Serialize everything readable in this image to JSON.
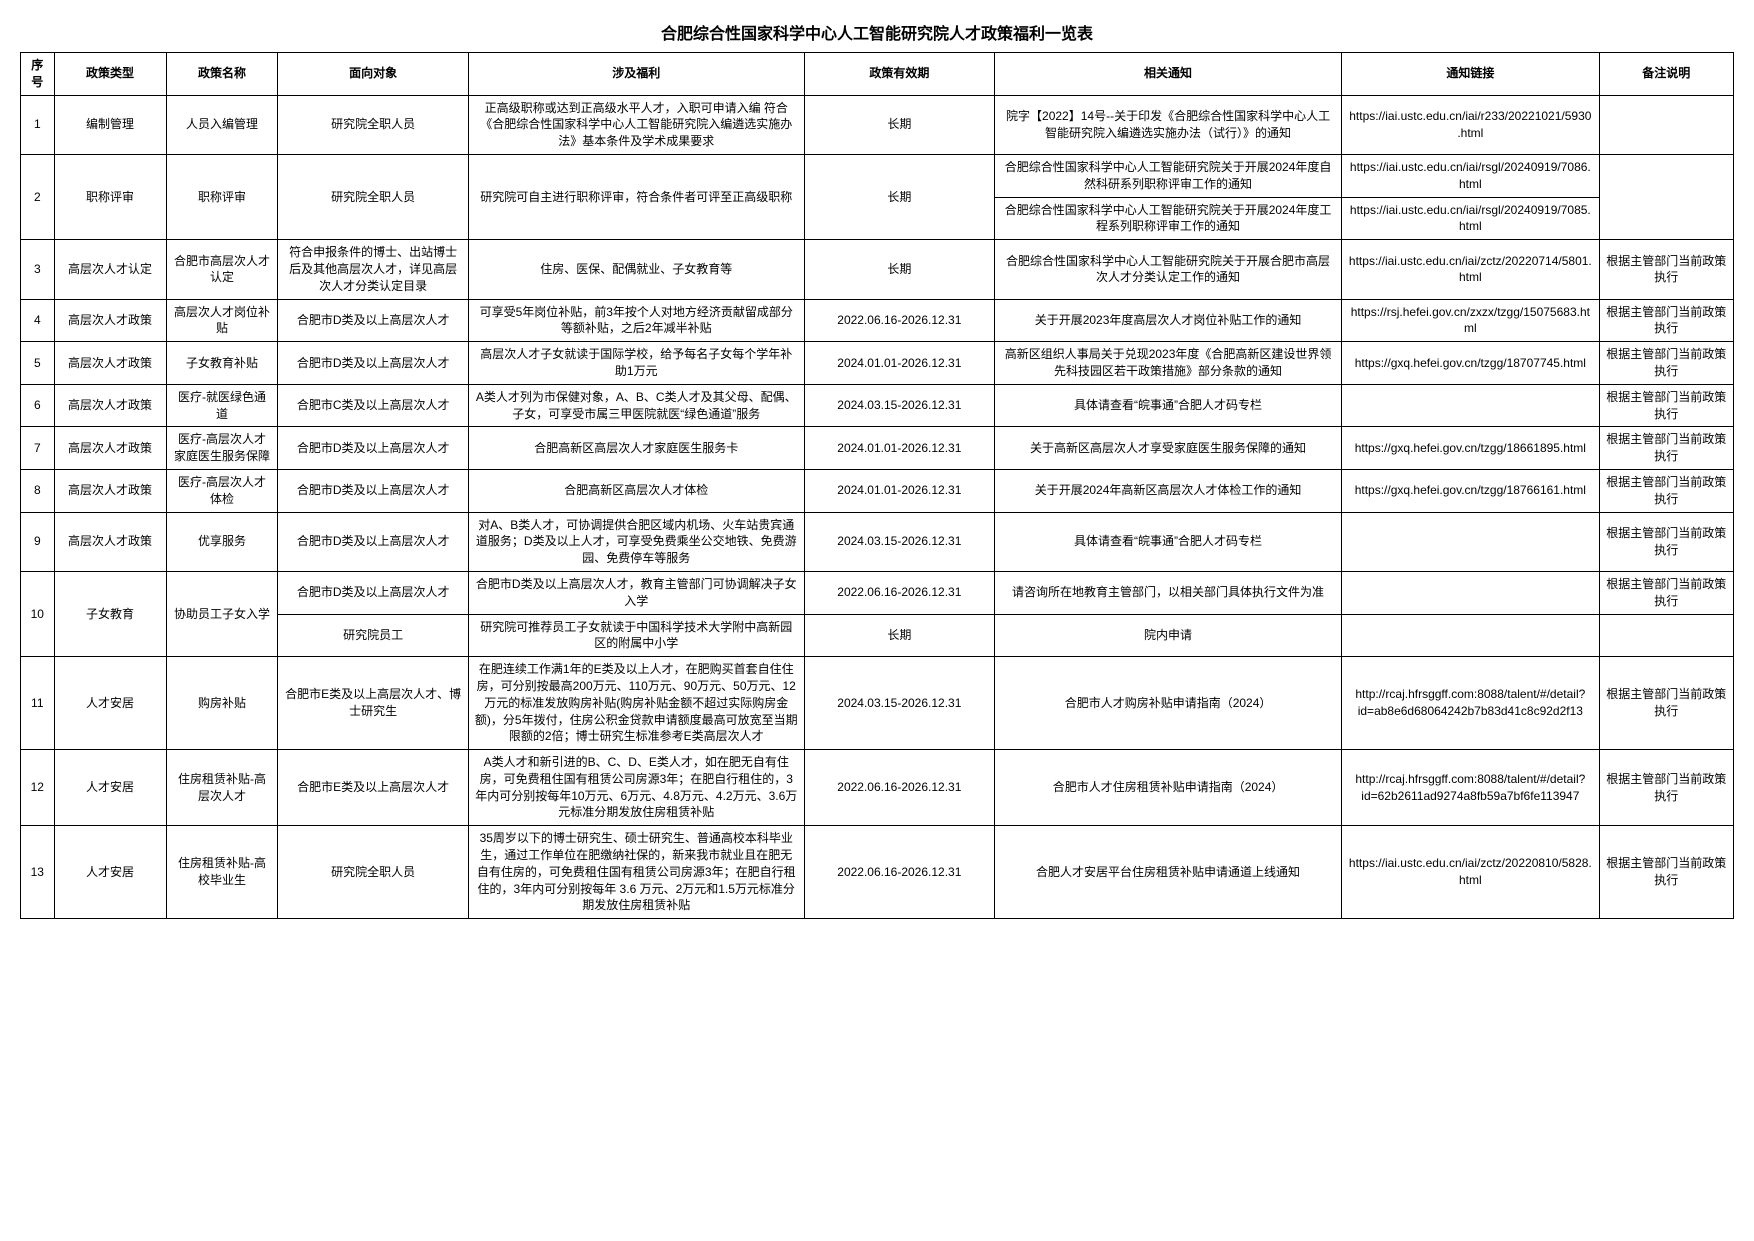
{
  "page_title": "合肥综合性国家科学中心人工智能研究院人才政策福利一览表",
  "columns": {
    "seq": "序号",
    "type": "政策类型",
    "name": "政策名称",
    "target": "面向对象",
    "benefit": "涉及福利",
    "valid": "政策有效期",
    "notice": "相关通知",
    "link": "通知链接",
    "remark": "备注说明"
  },
  "r1": {
    "seq": "1",
    "type": "编制管理",
    "name": "人员入编管理",
    "target": "研究院全职人员",
    "benefit": "正高级职称或达到正高级水平人才，入职可申请入编 符合《合肥综合性国家科学中心人工智能研究院入编遴选实施办法》基本条件及学术成果要求",
    "valid": "长期",
    "notice": "院字【2022】14号--关于印发《合肥综合性国家科学中心人工智能研究院入编遴选实施办法（试行）》的通知",
    "link": "https://iai.ustc.edu.cn/iai/r233/20221021/5930.html",
    "remark": ""
  },
  "r2": {
    "seq": "2",
    "type": "职称评审",
    "name": "职称评审",
    "target": "研究院全职人员",
    "benefit": "研究院可自主进行职称评审，符合条件者可评至正高级职称",
    "valid": "长期",
    "notice_a": "合肥综合性国家科学中心人工智能研究院关于开展2024年度自然科研系列职称评审工作的通知",
    "link_a": "https://iai.ustc.edu.cn/iai/rsgl/20240919/7086.html",
    "notice_b": "合肥综合性国家科学中心人工智能研究院关于开展2024年度工程系列职称评审工作的通知",
    "link_b": "https://iai.ustc.edu.cn/iai/rsgl/20240919/7085.html",
    "remark": ""
  },
  "r3": {
    "seq": "3",
    "type": "高层次人才认定",
    "name": "合肥市高层次人才认定",
    "target": "符合申报条件的博士、出站博士后及其他高层次人才，详见高层次人才分类认定目录",
    "benefit": "住房、医保、配偶就业、子女教育等",
    "valid": "长期",
    "notice": "合肥综合性国家科学中心人工智能研究院关于开展合肥市高层次人才分类认定工作的通知",
    "link": "https://iai.ustc.edu.cn/iai/zctz/20220714/5801.html",
    "remark": "根据主管部门当前政策执行"
  },
  "r4": {
    "seq": "4",
    "type": "高层次人才政策",
    "name": "高层次人才岗位补贴",
    "target": "合肥市D类及以上高层次人才",
    "benefit": "可享受5年岗位补贴，前3年按个人对地方经济贡献留成部分等额补贴，之后2年减半补贴",
    "valid": "2022.06.16-2026.12.31",
    "notice": "关于开展2023年度高层次人才岗位补贴工作的通知",
    "link": "https://rsj.hefei.gov.cn/zxzx/tzgg/15075683.html",
    "remark": "根据主管部门当前政策执行"
  },
  "r5": {
    "seq": "5",
    "type": "高层次人才政策",
    "name": "子女教育补贴",
    "target": "合肥市D类及以上高层次人才",
    "benefit": "高层次人才子女就读于国际学校，给予每名子女每个学年补助1万元",
    "valid": "2024.01.01-2026.12.31",
    "notice": "高新区组织人事局关于兑现2023年度《合肥高新区建设世界领先科技园区若干政策措施》部分条款的通知",
    "link": "https://gxq.hefei.gov.cn/tzgg/18707745.html",
    "remark": "根据主管部门当前政策执行"
  },
  "r6": {
    "seq": "6",
    "type": "高层次人才政策",
    "name": "医疗-就医绿色通道",
    "target": "合肥市C类及以上高层次人才",
    "benefit": "A类人才列为市保健对象，A、B、C类人才及其父母、配偶、子女，可享受市属三甲医院就医“绿色通道”服务",
    "valid": "2024.03.15-2026.12.31",
    "notice": "具体请查看“皖事通”合肥人才码专栏",
    "link": "",
    "remark": "根据主管部门当前政策执行"
  },
  "r7": {
    "seq": "7",
    "type": "高层次人才政策",
    "name": "医疗-高层次人才家庭医生服务保障",
    "target": "合肥市D类及以上高层次人才",
    "benefit": "合肥高新区高层次人才家庭医生服务卡",
    "valid": "2024.01.01-2026.12.31",
    "notice": "关于高新区高层次人才享受家庭医生服务保障的通知",
    "link": "https://gxq.hefei.gov.cn/tzgg/18661895.html",
    "remark": "根据主管部门当前政策执行"
  },
  "r8": {
    "seq": "8",
    "type": "高层次人才政策",
    "name": "医疗-高层次人才体检",
    "target": "合肥市D类及以上高层次人才",
    "benefit": "合肥高新区高层次人才体检",
    "valid": "2024.01.01-2026.12.31",
    "notice": "关于开展2024年高新区高层次人才体检工作的通知",
    "link": "https://gxq.hefei.gov.cn/tzgg/18766161.html",
    "remark": "根据主管部门当前政策执行"
  },
  "r9": {
    "seq": "9",
    "type": "高层次人才政策",
    "name": "优享服务",
    "target": "合肥市D类及以上高层次人才",
    "benefit": "对A、B类人才，可协调提供合肥区域内机场、火车站贵宾通道服务；D类及以上人才，可享受免费乘坐公交地铁、免费游园、免费停车等服务",
    "valid": "2024.03.15-2026.12.31",
    "notice": "具体请查看“皖事通”合肥人才码专栏",
    "link": "",
    "remark": "根据主管部门当前政策执行"
  },
  "r10": {
    "seq": "10",
    "type": "子女教育",
    "name": "协助员工子女入学",
    "target_a": "合肥市D类及以上高层次人才",
    "benefit_a": "合肥市D类及以上高层次人才，教育主管部门可协调解决子女入学",
    "valid_a": "2022.06.16-2026.12.31",
    "notice_a": "请咨询所在地教育主管部门，以相关部门具体执行文件为准",
    "link_a": "",
    "remark_a": "根据主管部门当前政策执行",
    "target_b": "研究院员工",
    "benefit_b": "研究院可推荐员工子女就读于中国科学技术大学附中高新园区的附属中小学",
    "valid_b": "长期",
    "notice_b": "院内申请",
    "link_b": "",
    "remark_b": ""
  },
  "r11": {
    "seq": "11",
    "type": "人才安居",
    "name": "购房补贴",
    "target": "合肥市E类及以上高层次人才、博士研究生",
    "benefit": "在肥连续工作满1年的E类及以上人才，在肥购买首套自住住房，可分别按最高200万元、110万元、90万元、50万元、12万元的标准发放购房补贴(购房补贴金额不超过实际购房金额)，分5年拨付，住房公积金贷款申请额度最高可放宽至当期限额的2倍；博士研究生标准参考E类高层次人才",
    "valid": "2024.03.15-2026.12.31",
    "notice": "合肥市人才购房补贴申请指南（2024）",
    "link": "http://rcaj.hfrsggff.com:8088/talent/#/detail?id=ab8e6d68064242b7b83d41c8c92d2f13",
    "remark": "根据主管部门当前政策执行"
  },
  "r12": {
    "seq": "12",
    "type": "人才安居",
    "name": "住房租赁补贴-高层次人才",
    "target": "合肥市E类及以上高层次人才",
    "benefit": "A类人才和新引进的B、C、D、E类人才，如在肥无自有住房，可免费租住国有租赁公司房源3年；在肥自行租住的，3年内可分别按每年10万元、6万元、4.8万元、4.2万元、3.6万元标准分期发放住房租赁补贴",
    "valid": "2022.06.16-2026.12.31",
    "notice": "合肥市人才住房租赁补贴申请指南（2024）",
    "link": "http://rcaj.hfrsggff.com:8088/talent/#/detail?id=62b2611ad9274a8fb59a7bf6fe113947",
    "remark": "根据主管部门当前政策执行"
  },
  "r13": {
    "seq": "13",
    "type": "人才安居",
    "name": "住房租赁补贴-高校毕业生",
    "target": "研究院全职人员",
    "benefit": "35周岁以下的博士研究生、硕士研究生、普通高校本科毕业生，通过工作单位在肥缴纳社保的，新来我市就业且在肥无自有住房的，可免费租住国有租赁公司房源3年；在肥自行租住的，3年内可分别按每年 3.6 万元、2万元和1.5万元标准分期发放住房租赁补贴",
    "valid": "2022.06.16-2026.12.31",
    "notice": "合肥人才安居平台住房租赁补贴申请通道上线通知",
    "link": "https://iai.ustc.edu.cn/iai/zctz/20220810/5828.html",
    "remark": "根据主管部门当前政策执行"
  }
}
